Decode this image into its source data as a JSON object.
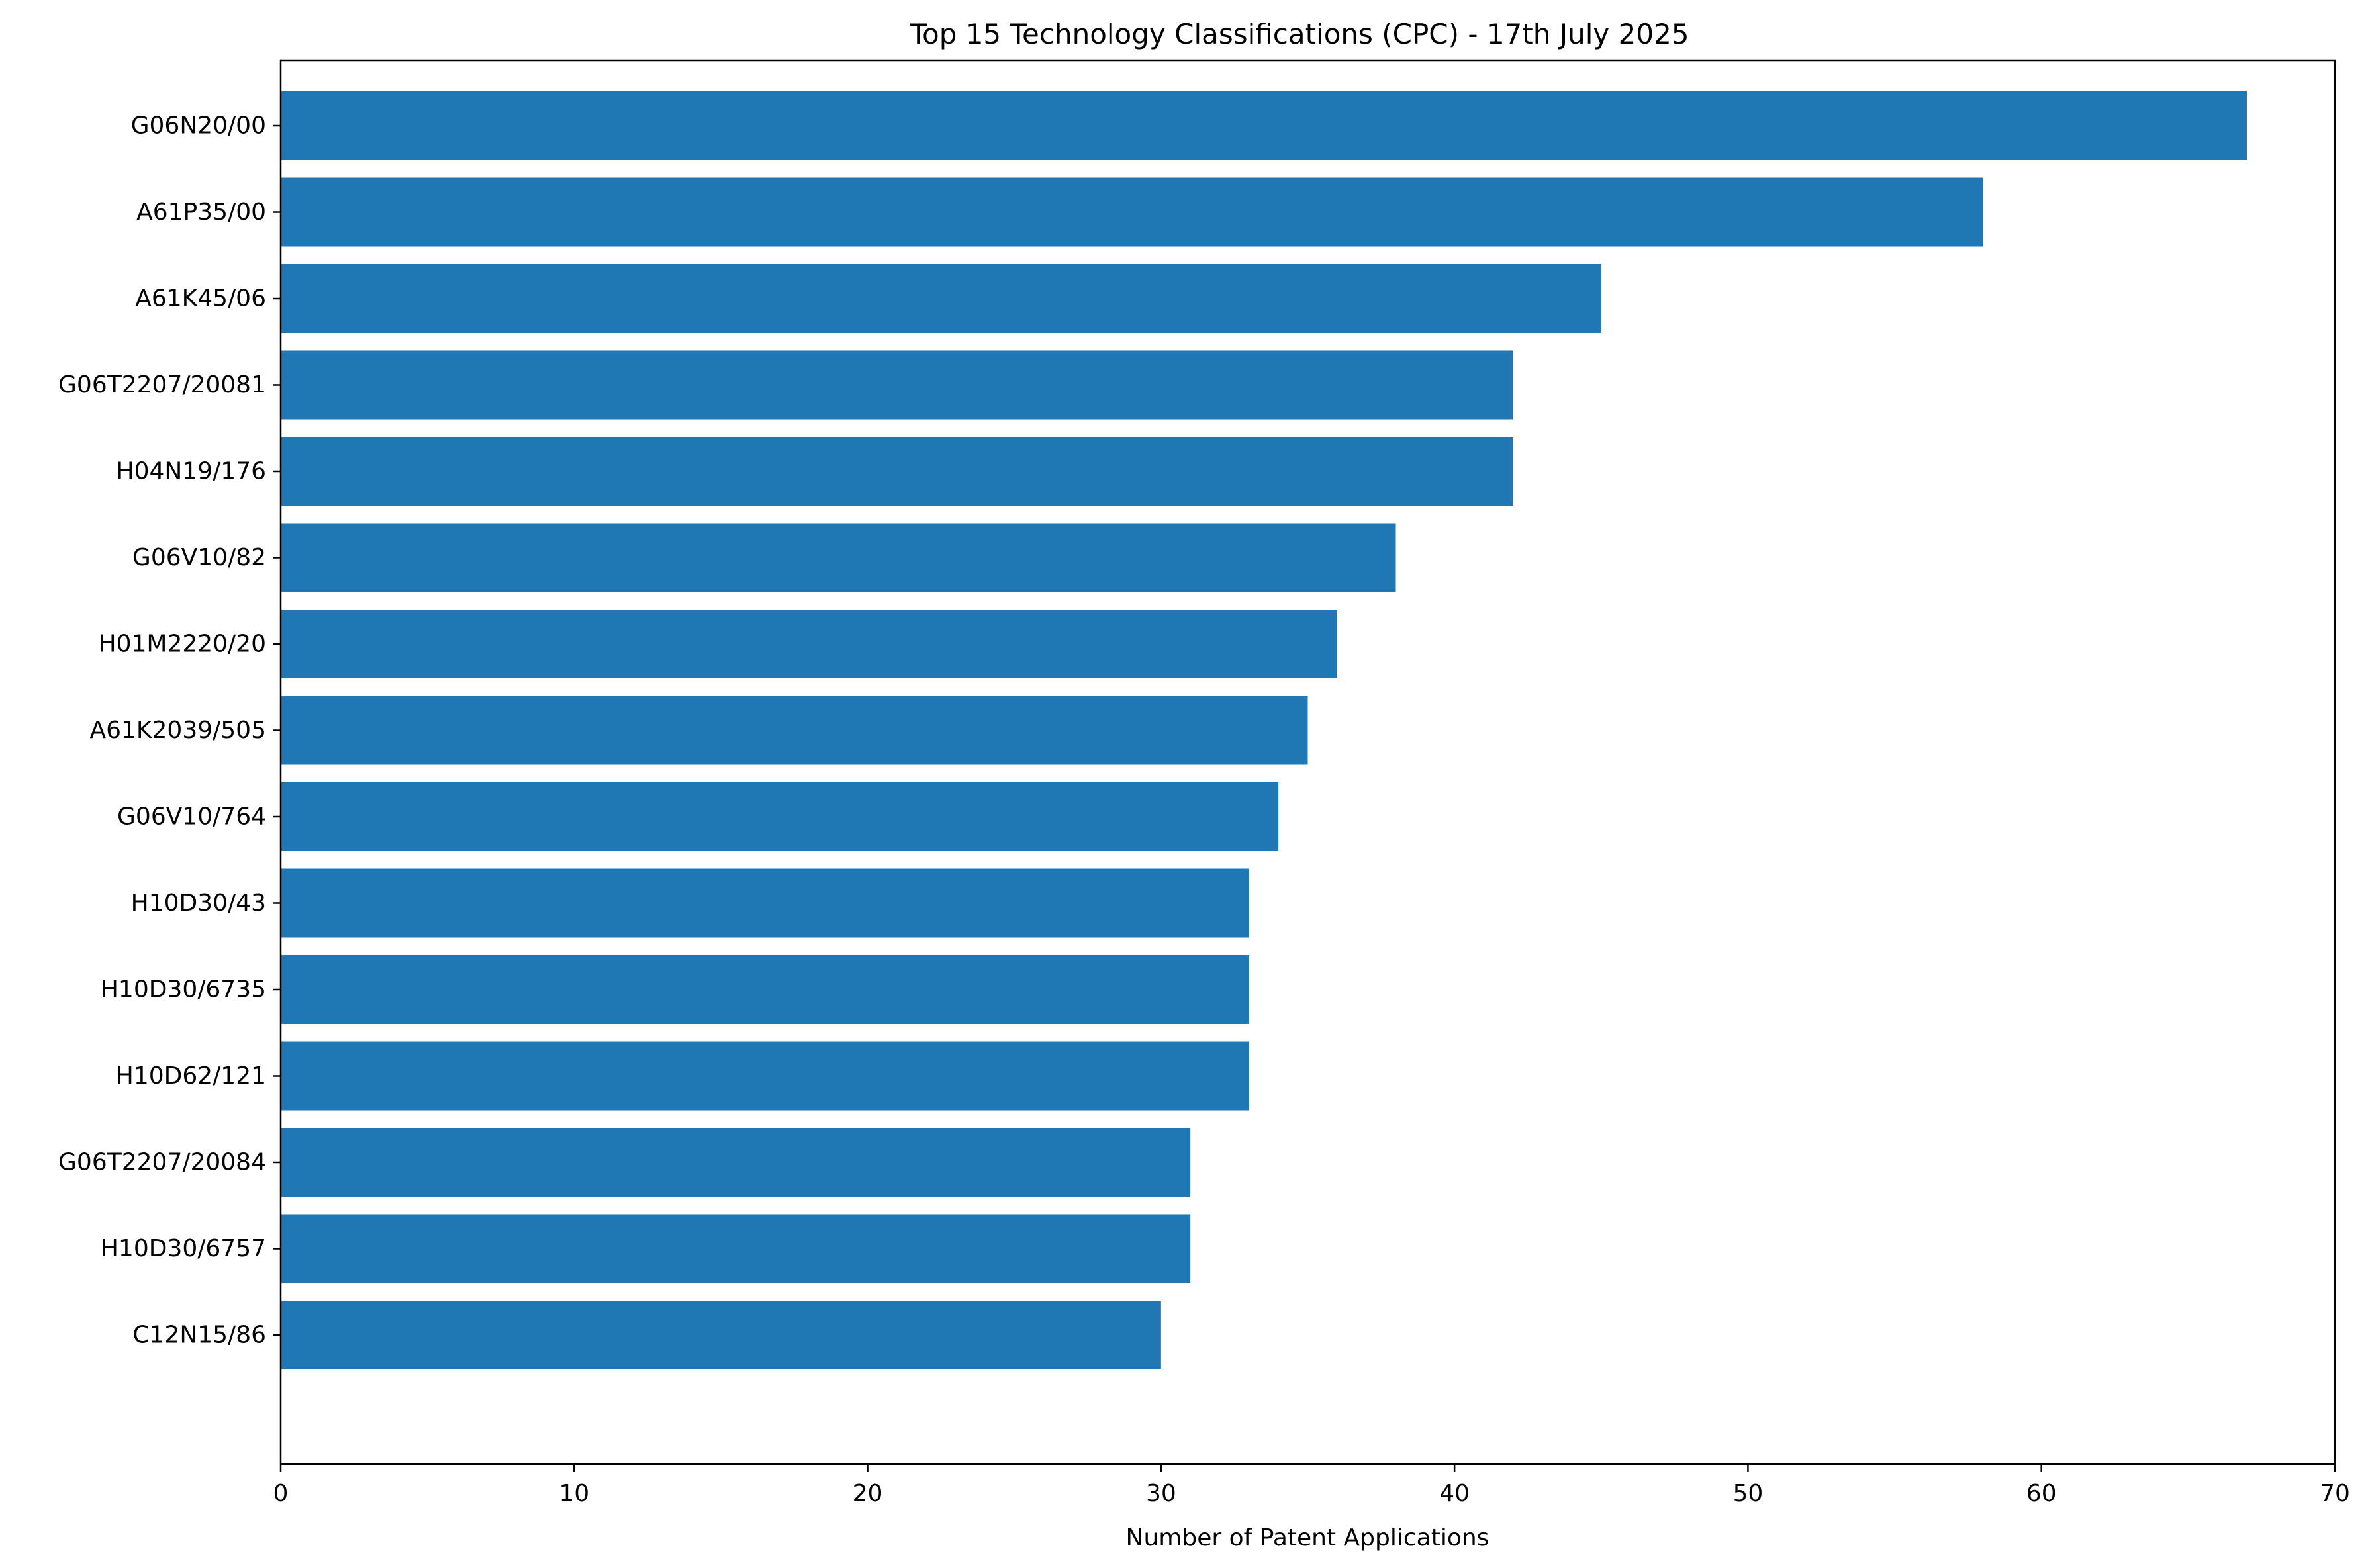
{
  "chart_data": {
    "type": "bar",
    "orientation": "horizontal",
    "title": "Top 15 Technology Classifications (CPC) - 17th July 2025",
    "xlabel": "Number of Patent Applications",
    "ylabel": "",
    "xlim": [
      0,
      70
    ],
    "xticks": [
      0,
      10,
      20,
      30,
      40,
      50,
      60,
      70
    ],
    "grid": false,
    "categories": [
      "G06N20/00",
      "A61P35/00",
      "A61K45/06",
      "G06T2207/20081",
      "H04N19/176",
      "G06V10/82",
      "H01M2220/20",
      "A61K2039/505",
      "G06V10/764",
      "H10D30/43",
      "H10D30/6735",
      "H10D62/121",
      "G06T2207/20084",
      "H10D30/6757",
      "C12N15/86"
    ],
    "values": [
      67,
      58,
      45,
      42,
      42,
      38,
      36,
      35,
      34,
      33,
      33,
      33,
      31,
      31,
      30
    ],
    "colors": {
      "bar": "#1f77b4",
      "axis": "#000000",
      "background": "#ffffff"
    }
  }
}
